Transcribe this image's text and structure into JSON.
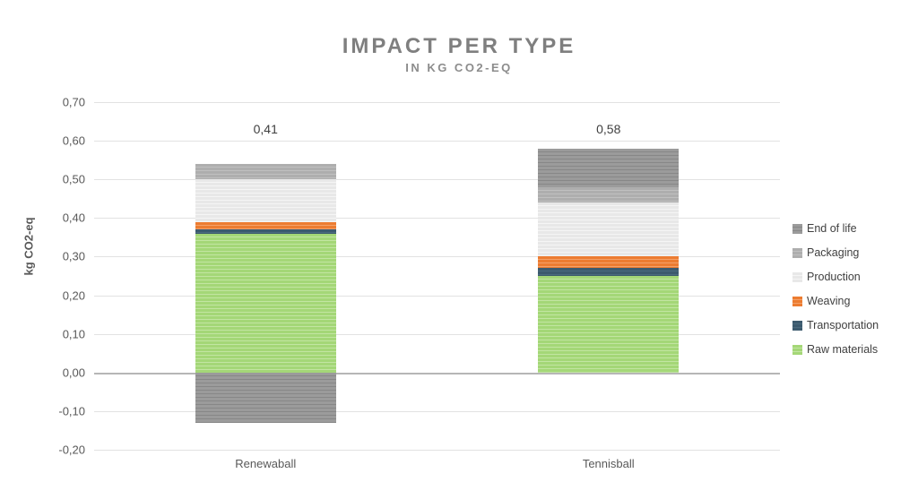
{
  "header": {
    "title": "IMPACT PER TYPE",
    "subtitle": "IN KG CO2-EQ"
  },
  "chart_data": {
    "type": "bar",
    "stacked": true,
    "title": "IMPACT PER TYPE",
    "subtitle": "IN KG CO2-EQ",
    "ylabel": "kg CO2-eq",
    "xlabel": "",
    "ylim": [
      -0.2,
      0.7
    ],
    "grid": true,
    "legend_position": "right",
    "categories": [
      "Renewaball",
      "Tennisball"
    ],
    "total_labels": [
      "0,41",
      "0,58"
    ],
    "totals": [
      0.41,
      0.58
    ],
    "yticks": [
      {
        "label": "0,70",
        "value": 0.7
      },
      {
        "label": "0,60",
        "value": 0.6
      },
      {
        "label": "0,50",
        "value": 0.5
      },
      {
        "label": "0,40",
        "value": 0.4
      },
      {
        "label": "0,30",
        "value": 0.3
      },
      {
        "label": "0,20",
        "value": 0.2
      },
      {
        "label": "0,10",
        "value": 0.1
      },
      {
        "label": "0,00",
        "value": 0.0
      },
      {
        "label": "-0,10",
        "value": -0.1
      },
      {
        "label": "-0,20",
        "value": -0.2
      }
    ],
    "series": [
      {
        "name": "Raw materials",
        "key": "raw_materials",
        "color": "#a4d777",
        "values": [
          0.36,
          0.25
        ]
      },
      {
        "name": "Transportation",
        "key": "transportation",
        "color": "#3c5a6e",
        "values": [
          0.01,
          0.02
        ]
      },
      {
        "name": "Weaving",
        "key": "weaving",
        "color": "#ed7d31",
        "values": [
          0.02,
          0.03
        ]
      },
      {
        "name": "Production",
        "key": "production",
        "color": "#e8e8e8",
        "values": [
          0.11,
          0.14
        ]
      },
      {
        "name": "Packaging",
        "key": "packaging",
        "color": "#aeaeae",
        "values": [
          0.04,
          0.04
        ]
      },
      {
        "name": "End of life",
        "key": "end_of_life",
        "color": "#9b9b9b",
        "values": [
          -0.13,
          0.1
        ]
      }
    ],
    "legend": [
      {
        "label": "End of life",
        "key": "end_of_life"
      },
      {
        "label": "Packaging",
        "key": "packaging"
      },
      {
        "label": "Production",
        "key": "production"
      },
      {
        "label": "Weaving",
        "key": "weaving"
      },
      {
        "label": "Transportation",
        "key": "transportation"
      },
      {
        "label": "Raw materials",
        "key": "raw_materials"
      }
    ],
    "colors": {
      "grid": "#e2e2e2",
      "zero_line": "#b6b6b6",
      "title_text": "#7f7f7f",
      "axis_text": "#595959",
      "label_text": "#404040"
    }
  }
}
